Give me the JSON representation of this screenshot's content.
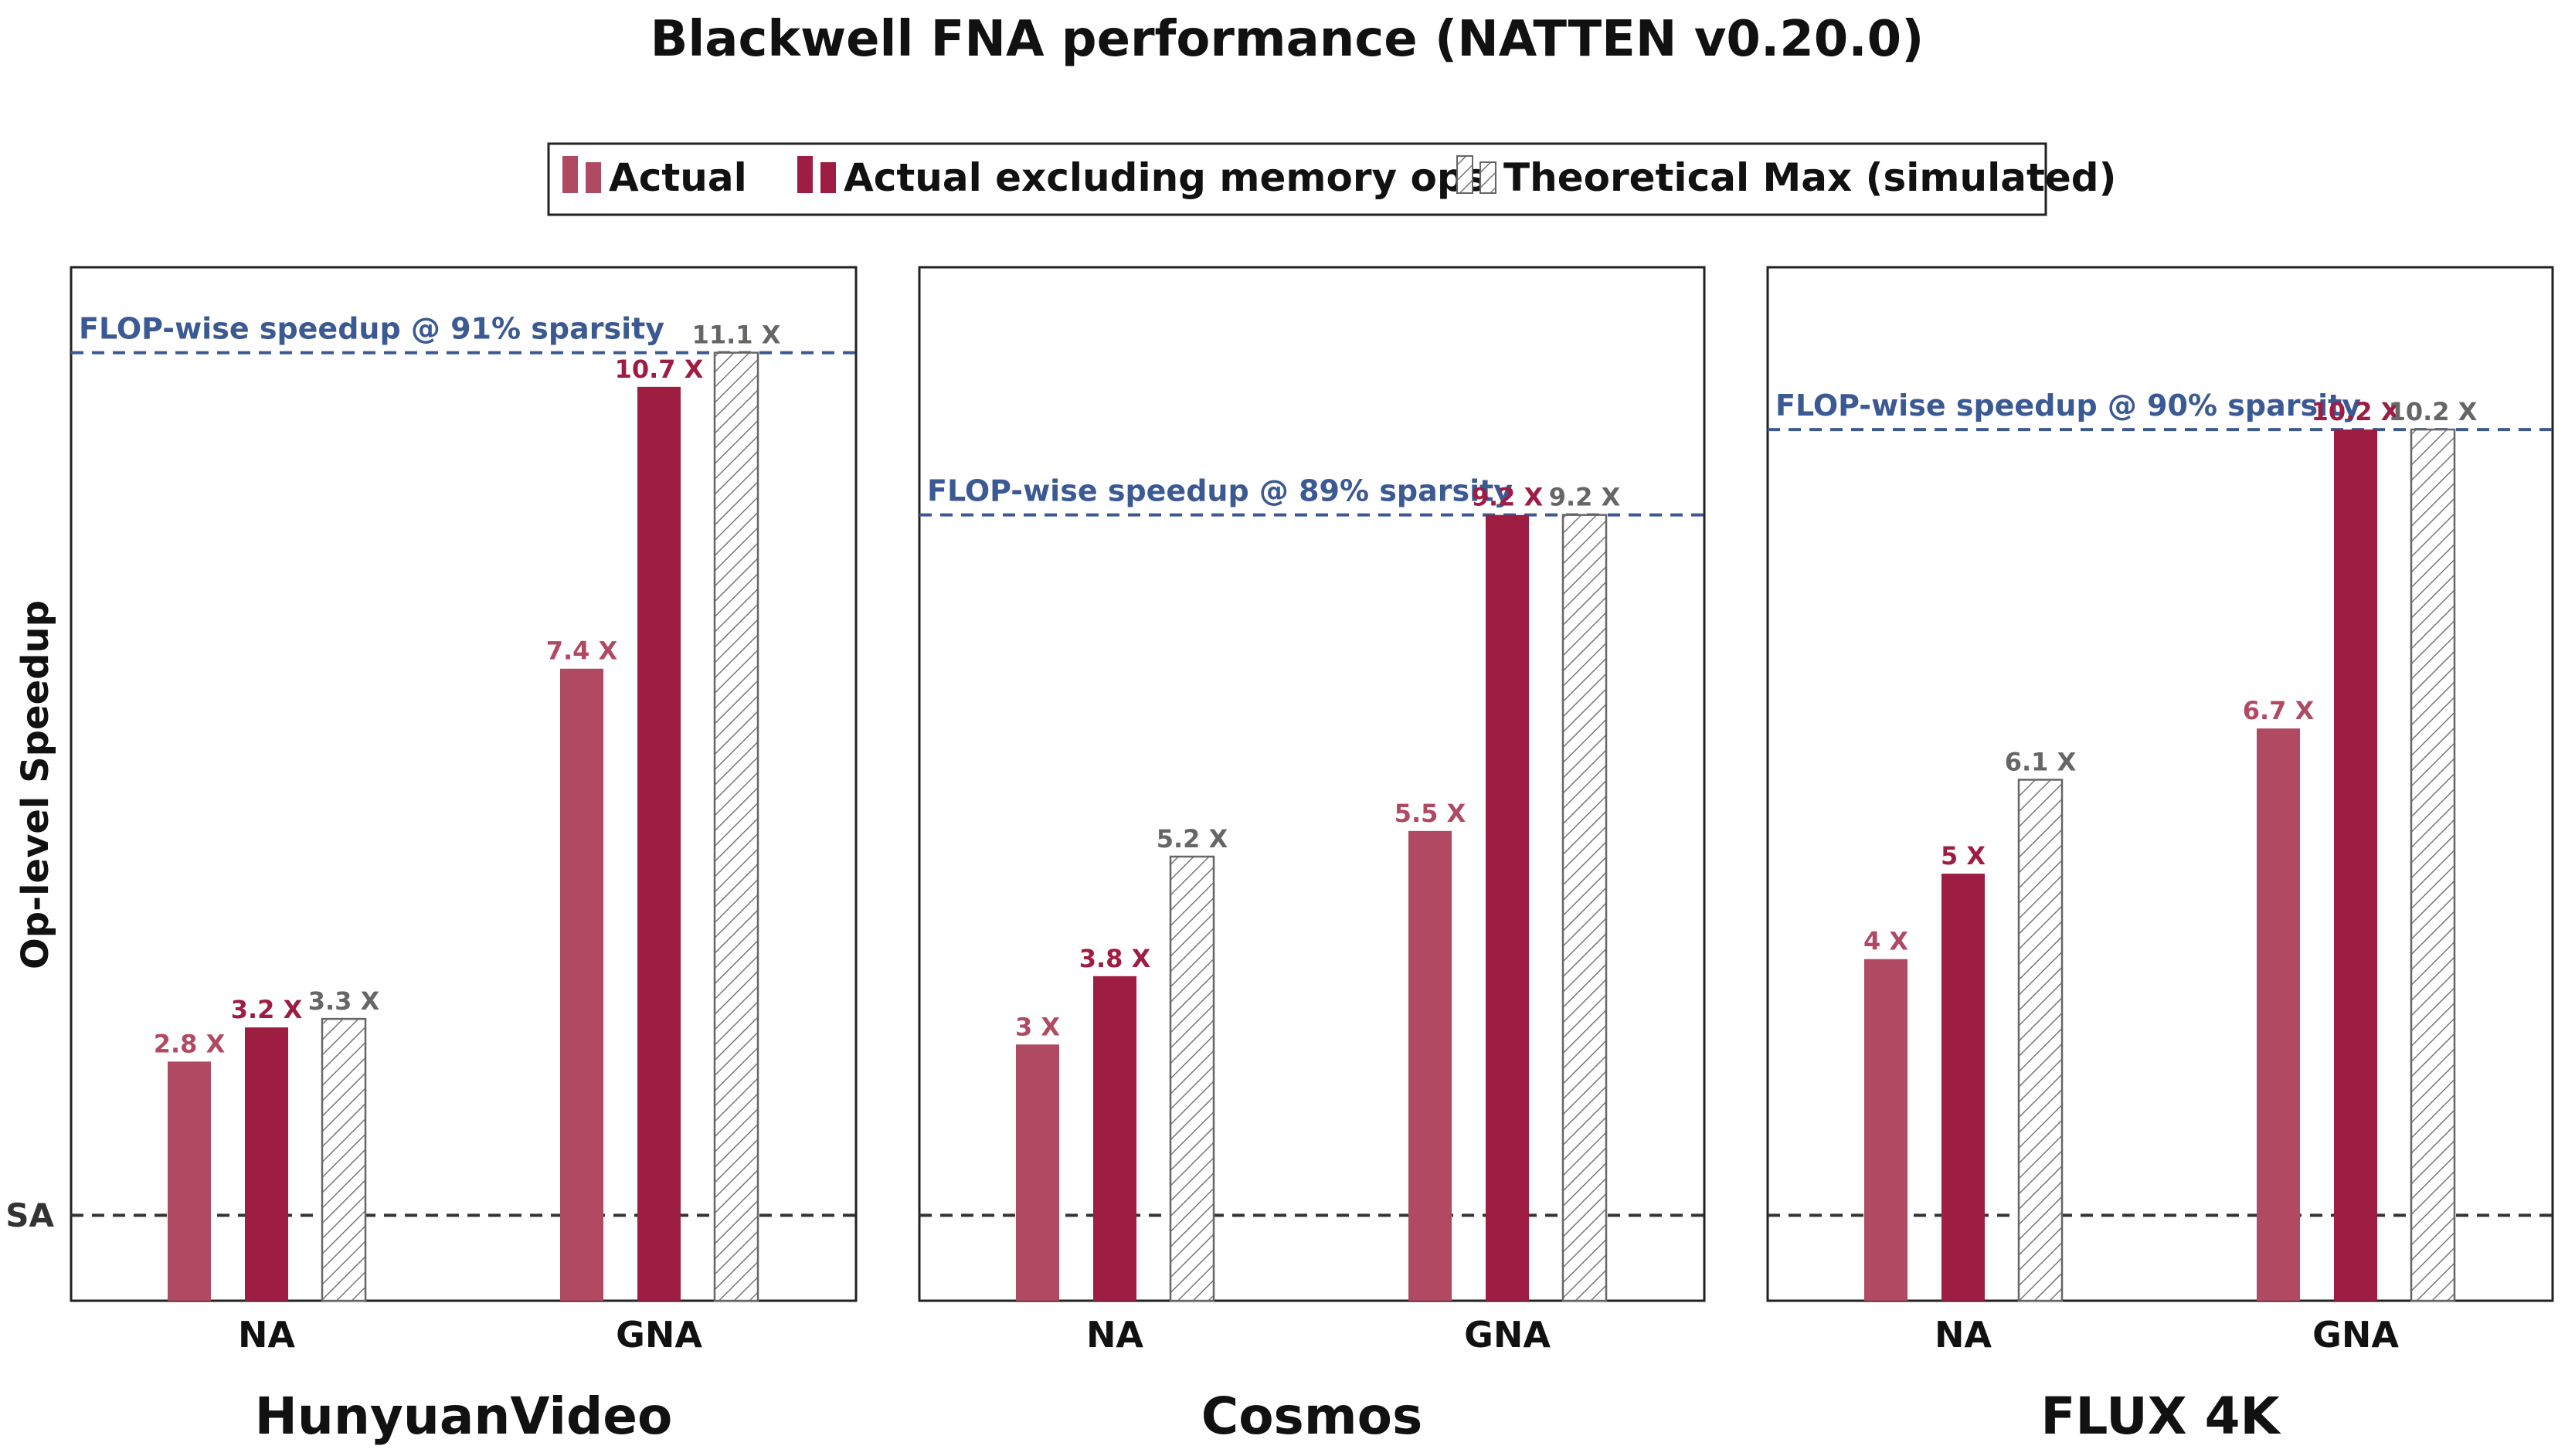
{
  "title": "Blackwell FNA performance (NATTEN v0.20.0)",
  "legend": [
    {
      "label": "Actual",
      "series": "actual"
    },
    {
      "label": "Actual excluding memory ops",
      "series": "actual_excl_mem"
    },
    {
      "label": "Theoretical Max (simulated)",
      "series": "theoretical"
    }
  ],
  "colors": {
    "actual": "#b04a63",
    "actual_excl_mem": "#9e1d42",
    "theoretical_stroke": "#666666",
    "flop_line": "#3b5a93",
    "sa_line": "#333333",
    "label_theoretical": "#666666"
  },
  "chart_data": {
    "type": "bar",
    "ylabel": "Op-level Speedup",
    "baseline_label": "SA",
    "baseline_value": 1,
    "ylim": [
      0,
      12.1
    ],
    "categories": [
      "NA",
      "GNA"
    ],
    "value_suffix": " X",
    "panels": [
      {
        "title": "HunyuanVideo",
        "flop_label": "FLOP-wise speedup @ 91% sparsity",
        "flop_value": 11.1,
        "series": [
          {
            "name": "Actual",
            "key": "actual",
            "values": [
              2.8,
              7.4
            ]
          },
          {
            "name": "Actual excluding memory ops",
            "key": "actual_excl_mem",
            "values": [
              3.2,
              10.7
            ]
          },
          {
            "name": "Theoretical Max (simulated)",
            "key": "theoretical",
            "values": [
              3.3,
              11.1
            ]
          }
        ]
      },
      {
        "title": "Cosmos",
        "flop_label": "FLOP-wise speedup @ 89% sparsity",
        "flop_value": 9.2,
        "series": [
          {
            "name": "Actual",
            "key": "actual",
            "values": [
              3,
              5.5
            ]
          },
          {
            "name": "Actual excluding memory ops",
            "key": "actual_excl_mem",
            "values": [
              3.8,
              9.2
            ]
          },
          {
            "name": "Theoretical Max (simulated)",
            "key": "theoretical",
            "values": [
              5.2,
              9.2
            ]
          }
        ]
      },
      {
        "title": "FLUX 4K",
        "flop_label": "FLOP-wise speedup @ 90% sparsity",
        "flop_value": 10.2,
        "series": [
          {
            "name": "Actual",
            "key": "actual",
            "values": [
              4,
              6.7
            ]
          },
          {
            "name": "Actual excluding memory ops",
            "key": "actual_excl_mem",
            "values": [
              5,
              10.2
            ]
          },
          {
            "name": "Theoretical Max (simulated)",
            "key": "theoretical",
            "values": [
              6.1,
              10.2
            ]
          }
        ]
      }
    ]
  }
}
